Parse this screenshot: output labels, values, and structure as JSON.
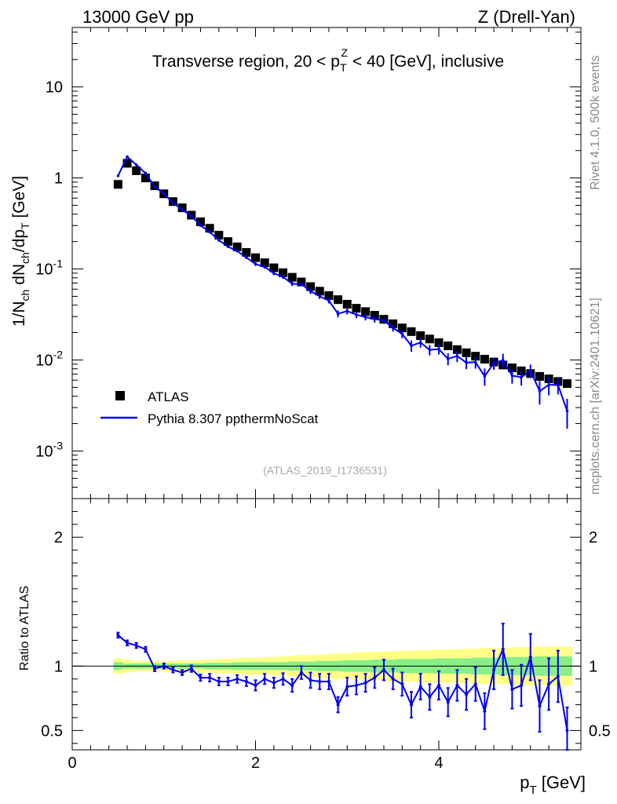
{
  "header": {
    "energy": "13000 GeV pp",
    "process": "Z (Drell-Yan)"
  },
  "side_labels": {
    "rivet": "Rivet 4.1.0,  500k events",
    "mcplots": "mcplots.cern.ch [arXiv:2401.10621]"
  },
  "chart_data": {
    "type": "line",
    "title": "Transverse region, 20 < p_T^Z < 40 [GeV], inclusive",
    "analysis_id": "(ATLAS_2019_I1736531)",
    "xlabel": "p_T [GeV]",
    "ylabel": "1/N_ch dN_ch/dp_T [GeV]",
    "ratio_ylabel": "Ratio to ATLAS",
    "xlim": [
      0,
      5.55
    ],
    "ylim": [
      0.0003,
      45
    ],
    "ratio_ylim": [
      0.35,
      2.3
    ],
    "x_ticks": [
      0,
      2,
      4
    ],
    "y_ticks": [
      "10^-3",
      "10^-2",
      "10^-1",
      "1",
      "10"
    ],
    "ratio_ticks": [
      0.5,
      1,
      2
    ],
    "legend": [
      {
        "label": "ATLAS",
        "marker": "square",
        "color": "#000000"
      },
      {
        "label": "Pythia 8.307 ppthermNoScat",
        "marker": "line",
        "color": "#0000ee"
      }
    ],
    "x": [
      0.5,
      0.6,
      0.7,
      0.8,
      0.9,
      1.0,
      1.1,
      1.2,
      1.3,
      1.4,
      1.5,
      1.6,
      1.7,
      1.8,
      1.9,
      2.0,
      2.1,
      2.2,
      2.3,
      2.4,
      2.5,
      2.6,
      2.7,
      2.8,
      2.9,
      3.0,
      3.1,
      3.2,
      3.3,
      3.4,
      3.5,
      3.6,
      3.7,
      3.8,
      3.9,
      4.0,
      4.1,
      4.2,
      4.3,
      4.4,
      4.5,
      4.6,
      4.7,
      4.8,
      4.9,
      5.0,
      5.1,
      5.2,
      5.3,
      5.4
    ],
    "series": [
      {
        "name": "ATLAS",
        "values": [
          0.85,
          1.45,
          1.2,
          1.0,
          0.82,
          0.67,
          0.55,
          0.47,
          0.39,
          0.33,
          0.28,
          0.235,
          0.2,
          0.175,
          0.152,
          0.133,
          0.117,
          0.103,
          0.091,
          0.081,
          0.072,
          0.064,
          0.057,
          0.051,
          0.046,
          0.041,
          0.037,
          0.034,
          0.031,
          0.028,
          0.025,
          0.0225,
          0.0205,
          0.0185,
          0.017,
          0.0155,
          0.0143,
          0.013,
          0.012,
          0.011,
          0.0102,
          0.0095,
          0.0088,
          0.0082,
          0.0076,
          0.0071,
          0.0066,
          0.0062,
          0.0058,
          0.0055
        ],
        "band_stat_rel": [
          0.03,
          0.02,
          0.02,
          0.02,
          0.02,
          0.02,
          0.02,
          0.02,
          0.02,
          0.02,
          0.025,
          0.025,
          0.025,
          0.03,
          0.03,
          0.03,
          0.03,
          0.03,
          0.03,
          0.035,
          0.035,
          0.035,
          0.04,
          0.04,
          0.04,
          0.045,
          0.045,
          0.045,
          0.05,
          0.05,
          0.05,
          0.055,
          0.055,
          0.055,
          0.055,
          0.06,
          0.06,
          0.06,
          0.06,
          0.065,
          0.065,
          0.065,
          0.07,
          0.07,
          0.07,
          0.07,
          0.075,
          0.075,
          0.075,
          0.075
        ],
        "band_total_rel": [
          0.06,
          0.05,
          0.04,
          0.04,
          0.04,
          0.04,
          0.04,
          0.045,
          0.045,
          0.05,
          0.05,
          0.055,
          0.055,
          0.06,
          0.065,
          0.065,
          0.07,
          0.07,
          0.075,
          0.08,
          0.085,
          0.085,
          0.09,
          0.095,
          0.1,
          0.1,
          0.105,
          0.11,
          0.11,
          0.115,
          0.115,
          0.12,
          0.12,
          0.125,
          0.125,
          0.13,
          0.13,
          0.13,
          0.135,
          0.135,
          0.14,
          0.14,
          0.14,
          0.145,
          0.145,
          0.15,
          0.15,
          0.15,
          0.15,
          0.15
        ]
      },
      {
        "name": "Pythia 8.307 ppthermNoScat",
        "ratio": [
          1.24,
          1.18,
          1.16,
          1.13,
          0.98,
          1.0,
          0.97,
          0.95,
          0.98,
          0.91,
          0.91,
          0.88,
          0.88,
          0.9,
          0.88,
          0.85,
          0.9,
          0.87,
          0.9,
          0.85,
          0.95,
          0.89,
          0.88,
          0.88,
          0.7,
          0.84,
          0.85,
          0.87,
          0.91,
          0.97,
          0.9,
          0.86,
          0.7,
          0.84,
          0.76,
          0.85,
          0.72,
          0.85,
          0.78,
          0.86,
          0.65,
          0.97,
          1.13,
          0.82,
          0.85,
          1.07,
          0.69,
          0.86,
          0.92,
          0.5
        ],
        "ratio_err": [
          0.02,
          0.02,
          0.02,
          0.02,
          0.02,
          0.02,
          0.02,
          0.02,
          0.025,
          0.025,
          0.03,
          0.03,
          0.03,
          0.03,
          0.035,
          0.04,
          0.04,
          0.04,
          0.045,
          0.05,
          0.05,
          0.06,
          0.06,
          0.06,
          0.06,
          0.07,
          0.07,
          0.07,
          0.08,
          0.08,
          0.08,
          0.09,
          0.1,
          0.1,
          0.1,
          0.11,
          0.11,
          0.12,
          0.12,
          0.13,
          0.14,
          0.15,
          0.2,
          0.15,
          0.16,
          0.18,
          0.2,
          0.2,
          0.2,
          0.18
        ]
      }
    ]
  }
}
